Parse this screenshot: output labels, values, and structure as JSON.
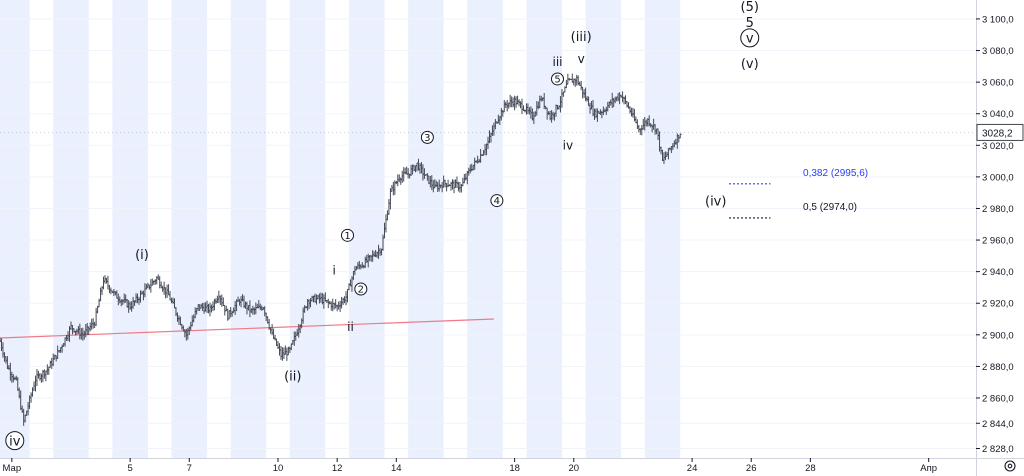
{
  "chart_data": {
    "type": "candlestick",
    "y_unit": "price",
    "ylim": [
      2822,
      3112
    ],
    "y_ticks": [
      {
        "v": 3100,
        "label": "3 100,0"
      },
      {
        "v": 3080,
        "label": "3 080,0"
      },
      {
        "v": 3060,
        "label": "3 060,0"
      },
      {
        "v": 3040,
        "label": "3 040,0"
      },
      {
        "v": 3020,
        "label": "3 020,0"
      },
      {
        "v": 3000,
        "label": "3 000,0"
      },
      {
        "v": 2980,
        "label": "2 980,0"
      },
      {
        "v": 2960,
        "label": "2 960,0"
      },
      {
        "v": 2940,
        "label": "2 940,0"
      },
      {
        "v": 2920,
        "label": "2 920,0"
      },
      {
        "v": 2900,
        "label": "2 900,0"
      },
      {
        "v": 2880,
        "label": "2 880,0"
      },
      {
        "v": 2860,
        "label": "2 860,0"
      },
      {
        "v": 2844,
        "label": "2 844,0"
      },
      {
        "v": 2828,
        "label": "2 828,0"
      }
    ],
    "x_ticks": [
      {
        "day": 1,
        "label": "Мар"
      },
      {
        "day": 5,
        "label": "5"
      },
      {
        "day": 7,
        "label": "7"
      },
      {
        "day": 10,
        "label": "10"
      },
      {
        "day": 12,
        "label": "12"
      },
      {
        "day": 14,
        "label": "14"
      },
      {
        "day": 18,
        "label": "18"
      },
      {
        "day": 20,
        "label": "20"
      },
      {
        "day": 24,
        "label": "24"
      },
      {
        "day": 26,
        "label": "26"
      },
      {
        "day": 28,
        "label": "28"
      },
      {
        "day": 32,
        "label": "Апр"
      }
    ],
    "x_range": [
      0.6,
      33.6
    ],
    "sessions": [
      {
        "start": 0.6,
        "end": 1.6
      },
      {
        "start": 2.4,
        "end": 3.6
      },
      {
        "start": 4.4,
        "end": 5.6
      },
      {
        "start": 6.4,
        "end": 7.6
      },
      {
        "start": 8.4,
        "end": 9.6
      },
      {
        "start": 10.4,
        "end": 11.6
      },
      {
        "start": 12.4,
        "end": 13.6
      },
      {
        "start": 14.4,
        "end": 15.6
      },
      {
        "start": 16.4,
        "end": 17.6
      },
      {
        "start": 18.4,
        "end": 19.6
      },
      {
        "start": 20.4,
        "end": 21.6
      },
      {
        "start": 22.4,
        "end": 23.6
      }
    ],
    "price_path": [
      {
        "day": 0.6,
        "price": 2896
      },
      {
        "day": 0.85,
        "price": 2880
      },
      {
        "day": 1.15,
        "price": 2870
      },
      {
        "day": 1.4,
        "price": 2845
      },
      {
        "day": 1.8,
        "price": 2872
      },
      {
        "day": 2.2,
        "price": 2878
      },
      {
        "day": 2.6,
        "price": 2890
      },
      {
        "day": 3.0,
        "price": 2905
      },
      {
        "day": 3.4,
        "price": 2900
      },
      {
        "day": 3.8,
        "price": 2908
      },
      {
        "day": 4.1,
        "price": 2935
      },
      {
        "day": 4.5,
        "price": 2925
      },
      {
        "day": 5.0,
        "price": 2918
      },
      {
        "day": 5.5,
        "price": 2928
      },
      {
        "day": 5.9,
        "price": 2936
      },
      {
        "day": 6.3,
        "price": 2925
      },
      {
        "day": 6.6,
        "price": 2912
      },
      {
        "day": 6.9,
        "price": 2900
      },
      {
        "day": 7.3,
        "price": 2918
      },
      {
        "day": 7.7,
        "price": 2916
      },
      {
        "day": 8.0,
        "price": 2926
      },
      {
        "day": 8.3,
        "price": 2912
      },
      {
        "day": 8.7,
        "price": 2922
      },
      {
        "day": 9.1,
        "price": 2915
      },
      {
        "day": 9.5,
        "price": 2918
      },
      {
        "day": 9.8,
        "price": 2900
      },
      {
        "day": 10.1,
        "price": 2887
      },
      {
        "day": 10.4,
        "price": 2890
      },
      {
        "day": 10.7,
        "price": 2905
      },
      {
        "day": 11.0,
        "price": 2922
      },
      {
        "day": 11.4,
        "price": 2923
      },
      {
        "day": 11.7,
        "price": 2920
      },
      {
        "day": 12.0,
        "price": 2918
      },
      {
        "day": 12.3,
        "price": 2924
      },
      {
        "day": 12.6,
        "price": 2942
      },
      {
        "day": 12.9,
        "price": 2945
      },
      {
        "day": 13.2,
        "price": 2950
      },
      {
        "day": 13.5,
        "price": 2955
      },
      {
        "day": 13.8,
        "price": 2990
      },
      {
        "day": 14.1,
        "price": 3000
      },
      {
        "day": 14.4,
        "price": 3002
      },
      {
        "day": 14.7,
        "price": 3008
      },
      {
        "day": 15.0,
        "price": 3000
      },
      {
        "day": 15.3,
        "price": 2993
      },
      {
        "day": 15.6,
        "price": 2996
      },
      {
        "day": 15.9,
        "price": 2995
      },
      {
        "day": 16.2,
        "price": 2994
      },
      {
        "day": 16.5,
        "price": 3005
      },
      {
        "day": 16.8,
        "price": 3012
      },
      {
        "day": 17.1,
        "price": 3022
      },
      {
        "day": 17.4,
        "price": 3036
      },
      {
        "day": 17.7,
        "price": 3046
      },
      {
        "day": 18.0,
        "price": 3048
      },
      {
        "day": 18.3,
        "price": 3044
      },
      {
        "day": 18.6,
        "price": 3038
      },
      {
        "day": 18.9,
        "price": 3050
      },
      {
        "day": 19.2,
        "price": 3038
      },
      {
        "day": 19.5,
        "price": 3046
      },
      {
        "day": 19.8,
        "price": 3060
      },
      {
        "day": 20.1,
        "price": 3062
      },
      {
        "day": 20.4,
        "price": 3050
      },
      {
        "day": 20.7,
        "price": 3040
      },
      {
        "day": 21.0,
        "price": 3042
      },
      {
        "day": 21.3,
        "price": 3048
      },
      {
        "day": 21.6,
        "price": 3052
      },
      {
        "day": 21.9,
        "price": 3042
      },
      {
        "day": 22.2,
        "price": 3030
      },
      {
        "day": 22.5,
        "price": 3036
      },
      {
        "day": 22.8,
        "price": 3030
      },
      {
        "day": 23.0,
        "price": 3010
      },
      {
        "day": 23.2,
        "price": 3016
      },
      {
        "day": 23.4,
        "price": 3022
      },
      {
        "day": 23.6,
        "price": 3028
      }
    ],
    "trend_line": {
      "from": {
        "day": 0.6,
        "price": 2898
      },
      "to": {
        "day": 17.3,
        "price": 2910
      },
      "color": "#f07a86"
    },
    "wave_labels": [
      {
        "text": "iv",
        "day": 1.1,
        "price": 2833,
        "circled": true,
        "size": "big"
      },
      {
        "text": "(i)",
        "day": 5.4,
        "price": 2951,
        "circled": false,
        "size": "big"
      },
      {
        "text": "(ii)",
        "day": 10.5,
        "price": 2874,
        "circled": false,
        "size": "big"
      },
      {
        "text": "i",
        "day": 11.9,
        "price": 2941,
        "circled": false,
        "size": "mid"
      },
      {
        "text": "ii",
        "day": 12.45,
        "price": 2905,
        "circled": false,
        "size": "mid"
      },
      {
        "text": "1",
        "day": 12.35,
        "price": 2963,
        "circled": true,
        "size": "small"
      },
      {
        "text": "2",
        "day": 12.8,
        "price": 2929,
        "circled": true,
        "size": "small"
      },
      {
        "text": "3",
        "day": 15.05,
        "price": 3025,
        "circled": true,
        "size": "small"
      },
      {
        "text": "4",
        "day": 17.4,
        "price": 2985,
        "circled": true,
        "size": "small"
      },
      {
        "text": "iii",
        "day": 19.45,
        "price": 3073,
        "circled": false,
        "size": "mid"
      },
      {
        "text": "5",
        "day": 19.45,
        "price": 3062,
        "circled": true,
        "size": "small"
      },
      {
        "text": "iv",
        "day": 19.8,
        "price": 3020,
        "circled": false,
        "size": "mid"
      },
      {
        "text": "(iii)",
        "day": 20.25,
        "price": 3089,
        "circled": false,
        "size": "big"
      },
      {
        "text": "v",
        "day": 20.25,
        "price": 3075,
        "circled": false,
        "size": "mid"
      },
      {
        "text": "(iv)",
        "day": 24.8,
        "price": 2985,
        "circled": false,
        "size": "big"
      },
      {
        "text": "(5)",
        "day": 25.95,
        "price": 3108,
        "circled": false,
        "size": "big"
      },
      {
        "text": "5",
        "day": 25.95,
        "price": 3098,
        "circled": false,
        "size": "big"
      },
      {
        "text": "v",
        "day": 25.95,
        "price": 3088,
        "circled": true,
        "size": "big"
      },
      {
        "text": "(v)",
        "day": 25.95,
        "price": 3072,
        "circled": false,
        "size": "big"
      }
    ],
    "fib_levels": [
      {
        "ratio_label": "0,382 (2995,6)",
        "price": 2995.6,
        "from_day": 25.25,
        "to_day": 26.65,
        "color": "#2a3df5"
      },
      {
        "ratio_label": "0,5 (2974,0)",
        "price": 2974.0,
        "from_day": 25.25,
        "to_day": 26.65,
        "color": "#131722"
      }
    ],
    "last_price": {
      "price": 3028.2,
      "label": "3028,2"
    },
    "colors": {
      "session_bg": "#eaf0fd",
      "grid": "#f0f3fa",
      "bar": "#444a57"
    }
  },
  "toolbar": {
    "settings_icon": "gear-icon"
  }
}
